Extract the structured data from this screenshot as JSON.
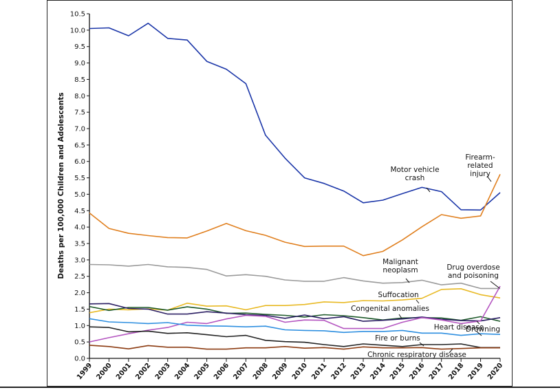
{
  "chart_data": {
    "type": "line",
    "title": "",
    "xlabel": "",
    "ylabel": "Deaths per 100,000 Children and Adolescents",
    "ylim": [
      0.0,
      10.5
    ],
    "yticks": [
      "0.0",
      "0.5",
      "1.0",
      "1.5",
      "2.0",
      "2.5",
      "3.0",
      "3.5",
      "4.0",
      "4.5",
      "5.0",
      "5.5",
      "6.0",
      "6.5",
      "7.0",
      "7.5",
      "8.0",
      "8.5",
      "9.0",
      "9.5",
      "10.0",
      "10.5"
    ],
    "x": [
      "1999",
      "2000",
      "2001",
      "2002",
      "2003",
      "2004",
      "2005",
      "2006",
      "2007",
      "2008",
      "2009",
      "2010",
      "2011",
      "2012",
      "2013",
      "2014",
      "2015",
      "2016",
      "2017",
      "2018",
      "2019",
      "2020"
    ],
    "grid": false,
    "legend": "inline annotations",
    "series": [
      {
        "name": "Motor vehicle crash",
        "color": "#1a35a8",
        "values": [
          10.05,
          10.07,
          9.83,
          10.21,
          9.75,
          9.7,
          9.05,
          8.81,
          8.37,
          6.8,
          6.1,
          5.5,
          5.33,
          5.1,
          4.74,
          4.82,
          5.02,
          5.21,
          5.08,
          4.53,
          4.52,
          5.05
        ]
      },
      {
        "name": "Firearm-related injury",
        "color": "#e07f1e",
        "values": [
          4.43,
          3.96,
          3.81,
          3.74,
          3.68,
          3.67,
          3.88,
          4.11,
          3.89,
          3.75,
          3.54,
          3.41,
          3.42,
          3.42,
          3.13,
          3.26,
          3.61,
          4.01,
          4.38,
          4.27,
          4.34,
          5.61
        ]
      },
      {
        "name": "Malignant neoplasm",
        "color": "#9a9a9a",
        "values": [
          2.86,
          2.85,
          2.81,
          2.86,
          2.79,
          2.77,
          2.71,
          2.51,
          2.55,
          2.5,
          2.39,
          2.35,
          2.35,
          2.46,
          2.36,
          2.29,
          2.31,
          2.38,
          2.24,
          2.29,
          2.13,
          2.13
        ]
      },
      {
        "name": "Suffocation",
        "color": "#e8b923",
        "values": [
          1.39,
          1.5,
          1.48,
          1.51,
          1.47,
          1.68,
          1.59,
          1.6,
          1.48,
          1.61,
          1.61,
          1.64,
          1.72,
          1.7,
          1.76,
          1.75,
          1.78,
          1.83,
          2.1,
          2.12,
          1.94,
          1.84
        ]
      },
      {
        "name": "Congenital anomalies",
        "color": "#1e5a2a",
        "values": [
          1.58,
          1.46,
          1.55,
          1.55,
          1.47,
          1.57,
          1.5,
          1.37,
          1.38,
          1.34,
          1.31,
          1.26,
          1.33,
          1.3,
          1.24,
          1.17,
          1.23,
          1.24,
          1.23,
          1.16,
          1.27,
          1.13
        ]
      },
      {
        "name": "Drowning",
        "color": "#2b1e63",
        "values": [
          1.66,
          1.67,
          1.52,
          1.5,
          1.35,
          1.35,
          1.42,
          1.38,
          1.33,
          1.31,
          1.22,
          1.32,
          1.21,
          1.27,
          1.13,
          1.16,
          1.2,
          1.26,
          1.19,
          1.15,
          1.14,
          1.24
        ]
      },
      {
        "name": "Drug overdose and poisoning",
        "color": "#b455c0",
        "values": [
          0.5,
          0.63,
          0.75,
          0.86,
          0.94,
          1.1,
          1.06,
          1.2,
          1.31,
          1.28,
          1.1,
          1.17,
          1.16,
          0.91,
          0.91,
          0.91,
          1.1,
          1.24,
          1.17,
          1.06,
          1.14,
          2.2
        ]
      },
      {
        "name": "Heart disease",
        "color": "#2e8fe0",
        "values": [
          1.21,
          1.11,
          1.09,
          1.06,
          1.09,
          1.01,
          0.99,
          0.98,
          0.96,
          0.98,
          0.87,
          0.85,
          0.84,
          0.79,
          0.82,
          0.82,
          0.85,
          0.77,
          0.77,
          0.7,
          0.75,
          0.73
        ]
      },
      {
        "name": "Fire or burns",
        "color": "#222222",
        "values": [
          0.96,
          0.94,
          0.81,
          0.83,
          0.76,
          0.78,
          0.72,
          0.66,
          0.7,
          0.55,
          0.51,
          0.49,
          0.42,
          0.36,
          0.44,
          0.4,
          0.36,
          0.42,
          0.42,
          0.44,
          0.33,
          0.33
        ]
      },
      {
        "name": "Chronic respiratory disease",
        "color": "#8b3a10",
        "values": [
          0.4,
          0.36,
          0.29,
          0.39,
          0.34,
          0.34,
          0.28,
          0.28,
          0.32,
          0.32,
          0.36,
          0.31,
          0.33,
          0.28,
          0.35,
          0.32,
          0.32,
          0.33,
          0.28,
          0.3,
          0.32,
          0.32
        ]
      }
    ],
    "annotations": [
      {
        "lines": [
          "Motor vehicle",
          "crash"
        ],
        "series": "Motor vehicle crash"
      },
      {
        "lines": [
          "Firearm-",
          "related",
          "injury"
        ],
        "series": "Firearm-related injury"
      },
      {
        "lines": [
          "Malignant",
          "neoplasm"
        ],
        "series": "Malignant neoplasm"
      },
      {
        "lines": [
          "Drug overdose",
          "and poisoning"
        ],
        "series": "Drug overdose and poisoning"
      },
      {
        "lines": [
          "Suffocation"
        ],
        "series": "Suffocation"
      },
      {
        "lines": [
          "Congenital anomalies"
        ],
        "series": "Congenital anomalies"
      },
      {
        "lines": [
          "Heart disease"
        ],
        "series": "Heart disease"
      },
      {
        "lines": [
          "Drowning"
        ],
        "series": "Drowning"
      },
      {
        "lines": [
          "Fire or burns"
        ],
        "series": "Fire or burns"
      },
      {
        "lines": [
          "Chronic respiratory disease"
        ],
        "series": "Chronic respiratory disease"
      }
    ]
  }
}
